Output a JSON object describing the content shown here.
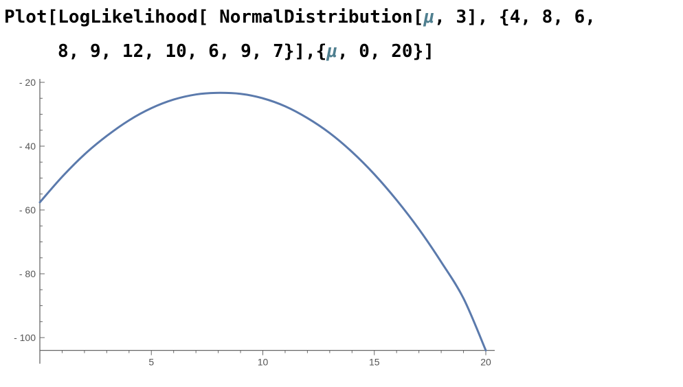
{
  "input": {
    "line1": {
      "a": "Plot[LogLikelihood[ NormalDistribution[",
      "mu": "μ",
      "b": ", 3], {4, 8, 6,"
    },
    "line2": {
      "a": "8, 9, 12, 10, 6, 9, 7}],{",
      "mu": "μ",
      "b": ", 0, 20}]"
    }
  },
  "colors": {
    "curve": "#5b7aac",
    "axis": "#666666",
    "symbol": "#4f7f8f"
  },
  "chart_data": {
    "type": "line",
    "title": "",
    "xlabel": "",
    "ylabel": "",
    "xlim": [
      0,
      20
    ],
    "ylim": [
      -104,
      -19
    ],
    "x_ticks_major": [
      5,
      10,
      15,
      20
    ],
    "x_tick_labels": [
      "5",
      "10",
      "15",
      "20"
    ],
    "y_ticks_major": [
      -20,
      -40,
      -60,
      -80,
      -100
    ],
    "y_tick_labels": [
      "- 20",
      "- 40",
      "- 60",
      "- 80",
      "- 100"
    ],
    "grid": false,
    "series": [
      {
        "x": [
          0,
          1,
          2,
          3,
          4,
          5,
          6,
          7,
          7.9,
          9,
          10,
          11,
          12,
          13,
          14,
          15,
          16,
          17,
          18,
          19,
          20
        ],
        "y": [
          -57.6,
          -49.6,
          -42.6,
          -36.8,
          -31.9,
          -28.1,
          -25.4,
          -23.8,
          -23.3,
          -23.6,
          -25.0,
          -27.5,
          -31.2,
          -35.9,
          -41.8,
          -48.8,
          -56.9,
          -66.0,
          -76.3,
          -87.7,
          -104.0
        ]
      }
    ]
  }
}
